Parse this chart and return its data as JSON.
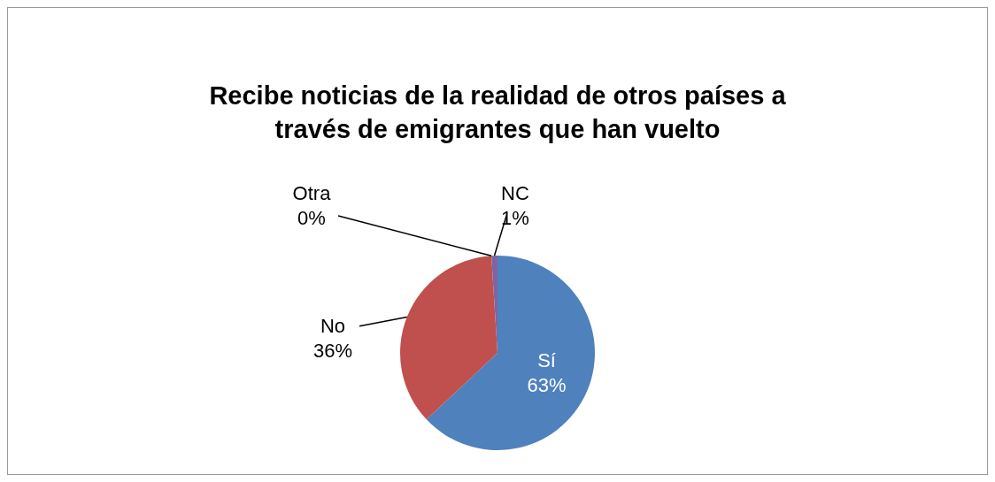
{
  "chart_data": {
    "type": "pie",
    "title": "Recibe noticias de la realidad de otros países a través de emigrantes que han vuelto",
    "categories": [
      "Sí",
      "No",
      "Otra",
      "NC"
    ],
    "values": [
      63,
      36,
      0,
      1
    ],
    "colors": [
      "#4f81bd",
      "#c0504d",
      "#9bbb59",
      "#8064a2"
    ],
    "value_labels": [
      "63%",
      "36%",
      "0%",
      "1%"
    ],
    "legend": false
  }
}
